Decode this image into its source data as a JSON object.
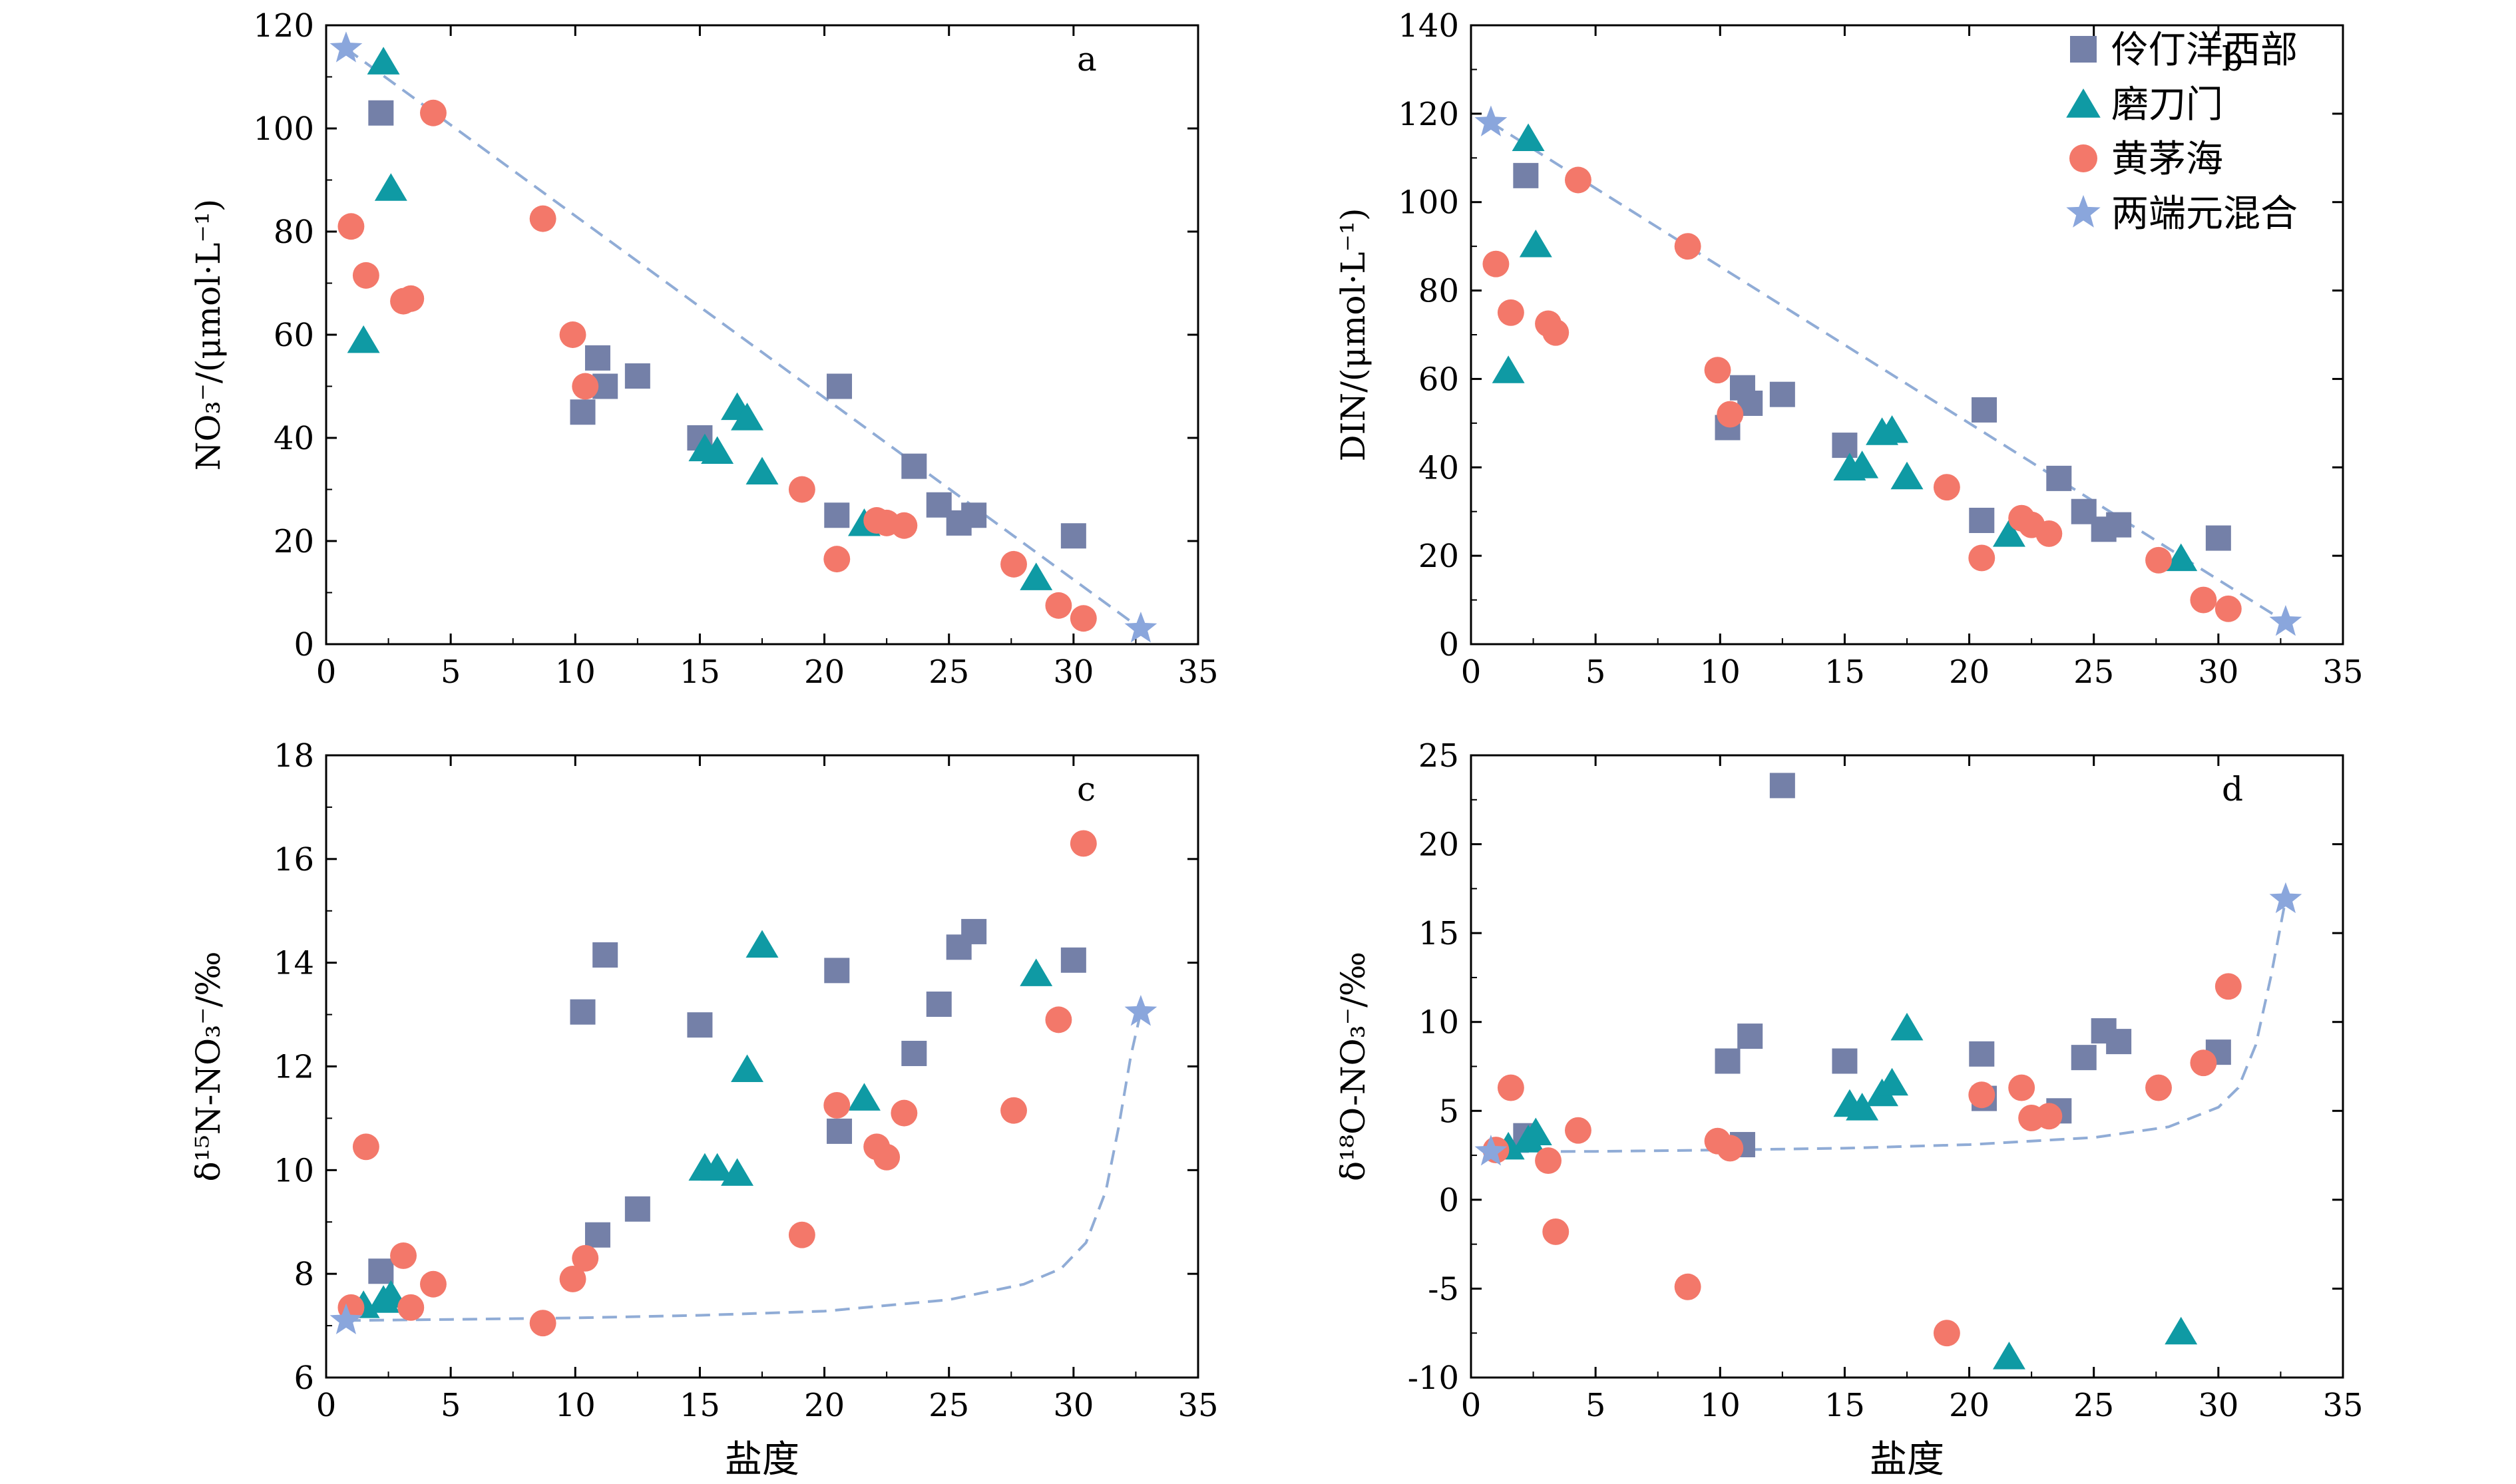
{
  "colors": {
    "west": "#7480a8",
    "modaomen": "#0f9aa4",
    "huangmaohai": "#f3786a",
    "mix": "#8aa6dc",
    "mix_line": "#90acd6",
    "axis": "#000000"
  },
  "legend": {
    "items": [
      {
        "key": "west",
        "label": "伶仃洋西部",
        "marker": "square"
      },
      {
        "key": "modaomen",
        "label": "磨刀门",
        "marker": "triangle"
      },
      {
        "key": "huangmaohai",
        "label": "黄茅海",
        "marker": "circle"
      },
      {
        "key": "mix",
        "label": "两端元混合",
        "marker": "star"
      }
    ]
  },
  "chart_data": [
    {
      "id": "a",
      "type": "scatter",
      "panel_label": "a",
      "ylabel": "NO₃⁻/(μmol·L⁻¹)",
      "xlabel": "",
      "xlim": [
        0,
        35
      ],
      "ylim": [
        0,
        120
      ],
      "xticks": [
        0,
        5,
        10,
        15,
        20,
        25,
        30,
        35
      ],
      "yticks": [
        0,
        20,
        40,
        60,
        80,
        100,
        120
      ],
      "series": [
        {
          "key": "west",
          "name": "伶仃洋西部",
          "points": [
            [
              2.2,
              103
            ],
            [
              10.3,
              45
            ],
            [
              10.9,
              55.5
            ],
            [
              11.2,
              50
            ],
            [
              12.5,
              52
            ],
            [
              15.0,
              40
            ],
            [
              20.5,
              25
            ],
            [
              20.6,
              50
            ],
            [
              23.6,
              34.5
            ],
            [
              24.6,
              27
            ],
            [
              25.4,
              23.5
            ],
            [
              26.0,
              25
            ],
            [
              30.0,
              21
            ]
          ]
        },
        {
          "key": "modaomen",
          "name": "磨刀门",
          "points": [
            [
              1.5,
              59
            ],
            [
              2.3,
              113
            ],
            [
              2.6,
              88.5
            ],
            [
              15.2,
              38
            ],
            [
              15.7,
              37.5
            ],
            [
              16.5,
              46
            ],
            [
              16.9,
              44
            ],
            [
              17.5,
              33.5
            ],
            [
              21.6,
              23.5
            ],
            [
              28.5,
              13
            ]
          ]
        },
        {
          "key": "huangmaohai",
          "name": "黄茅海",
          "points": [
            [
              1.0,
              81
            ],
            [
              1.6,
              71.5
            ],
            [
              3.1,
              66.5
            ],
            [
              3.4,
              67
            ],
            [
              4.3,
              103
            ],
            [
              8.7,
              82.5
            ],
            [
              9.9,
              60
            ],
            [
              10.4,
              50
            ],
            [
              19.1,
              30
            ],
            [
              20.5,
              16.5
            ],
            [
              22.1,
              24
            ],
            [
              22.5,
              23.5
            ],
            [
              23.2,
              23
            ],
            [
              27.6,
              15.5
            ],
            [
              29.4,
              7.5
            ],
            [
              30.4,
              5
            ]
          ]
        },
        {
          "key": "mix",
          "name": "两端元混合",
          "points": [
            [
              0.8,
              115.5
            ],
            [
              32.7,
              3
            ]
          ]
        }
      ],
      "mixing_curve": [
        [
          0.8,
          115.5
        ],
        [
          32.7,
          3
        ]
      ]
    },
    {
      "id": "b",
      "type": "scatter",
      "panel_label": "b",
      "ylabel": "DIN/(μmol·L⁻¹)",
      "xlabel": "",
      "xlim": [
        0,
        35
      ],
      "ylim": [
        0,
        140
      ],
      "xticks": [
        0,
        5,
        10,
        15,
        20,
        25,
        30,
        35
      ],
      "yticks": [
        0,
        20,
        40,
        60,
        80,
        100,
        120,
        140
      ],
      "series": [
        {
          "key": "west",
          "name": "伶仃洋西部",
          "points": [
            [
              2.2,
              106
            ],
            [
              10.3,
              49
            ],
            [
              10.9,
              58
            ],
            [
              11.2,
              54.5
            ],
            [
              12.5,
              56.5
            ],
            [
              15.0,
              45
            ],
            [
              20.5,
              28
            ],
            [
              20.6,
              53
            ],
            [
              23.6,
              37.5
            ],
            [
              24.6,
              30
            ],
            [
              25.4,
              26
            ],
            [
              26.0,
              27
            ],
            [
              30.0,
              24
            ]
          ]
        },
        {
          "key": "modaomen",
          "name": "磨刀门",
          "points": [
            [
              1.5,
              62
            ],
            [
              2.3,
              114.5
            ],
            [
              2.6,
              90.5
            ],
            [
              15.2,
              40
            ],
            [
              15.7,
              40.5
            ],
            [
              16.5,
              48
            ],
            [
              16.9,
              48.5
            ],
            [
              17.5,
              38
            ],
            [
              21.6,
              25
            ],
            [
              28.5,
              19.5
            ]
          ]
        },
        {
          "key": "huangmaohai",
          "name": "黄茅海",
          "points": [
            [
              1.0,
              86
            ],
            [
              1.6,
              75
            ],
            [
              3.1,
              72.5
            ],
            [
              3.4,
              70.5
            ],
            [
              4.3,
              105
            ],
            [
              8.7,
              90
            ],
            [
              9.9,
              62
            ],
            [
              10.4,
              52
            ],
            [
              19.1,
              35.5
            ],
            [
              20.5,
              19.5
            ],
            [
              22.1,
              28.5
            ],
            [
              22.5,
              27
            ],
            [
              23.2,
              25
            ],
            [
              27.6,
              19
            ],
            [
              29.4,
              10
            ],
            [
              30.4,
              8
            ]
          ]
        },
        {
          "key": "mix",
          "name": "两端元混合",
          "points": [
            [
              0.8,
              118
            ],
            [
              32.7,
              5
            ]
          ]
        }
      ],
      "mixing_curve": [
        [
          0.8,
          118
        ],
        [
          32.7,
          5
        ]
      ]
    },
    {
      "id": "c",
      "type": "scatter",
      "panel_label": "c",
      "ylabel": "δ¹⁵N-NO₃⁻/‰",
      "xlabel": "盐度",
      "xlim": [
        0,
        35
      ],
      "ylim": [
        6,
        18
      ],
      "xticks": [
        0,
        5,
        10,
        15,
        20,
        25,
        30,
        35
      ],
      "yticks": [
        6,
        8,
        10,
        12,
        14,
        16,
        18
      ],
      "series": [
        {
          "key": "west",
          "name": "伶仃洋西部",
          "points": [
            [
              2.2,
              8.05
            ],
            [
              10.3,
              13.05
            ],
            [
              10.9,
              8.75
            ],
            [
              11.2,
              14.15
            ],
            [
              12.5,
              9.25
            ],
            [
              15.0,
              12.8
            ],
            [
              20.5,
              13.85
            ],
            [
              20.6,
              10.75
            ],
            [
              23.6,
              12.25
            ],
            [
              24.6,
              13.2
            ],
            [
              25.4,
              14.3
            ],
            [
              26.0,
              14.6
            ],
            [
              30.0,
              14.05
            ]
          ]
        },
        {
          "key": "modaomen",
          "name": "磨刀门",
          "points": [
            [
              1.5,
              7.4
            ],
            [
              2.3,
              7.5
            ],
            [
              2.6,
              7.6
            ],
            [
              15.2,
              10.05
            ],
            [
              15.7,
              10.05
            ],
            [
              16.5,
              9.95
            ],
            [
              16.9,
              11.95
            ],
            [
              17.5,
              14.35
            ],
            [
              21.6,
              11.4
            ],
            [
              28.5,
              13.8
            ]
          ]
        },
        {
          "key": "huangmaohai",
          "name": "黄茅海",
          "points": [
            [
              1.0,
              7.35
            ],
            [
              1.6,
              10.45
            ],
            [
              3.1,
              8.35
            ],
            [
              3.4,
              7.35
            ],
            [
              4.3,
              7.8
            ],
            [
              8.7,
              7.05
            ],
            [
              9.9,
              7.9
            ],
            [
              10.4,
              8.3
            ],
            [
              19.1,
              8.75
            ],
            [
              20.5,
              11.25
            ],
            [
              22.1,
              10.45
            ],
            [
              22.5,
              10.25
            ],
            [
              23.2,
              11.1
            ],
            [
              27.6,
              11.15
            ],
            [
              29.4,
              12.9
            ],
            [
              30.4,
              16.3
            ]
          ]
        },
        {
          "key": "mix",
          "name": "两端元混合",
          "points": [
            [
              0.8,
              7.1
            ],
            [
              32.7,
              13.05
            ]
          ]
        }
      ],
      "mixing_curve": [
        [
          0.8,
          7.1
        ],
        [
          5,
          7.12
        ],
        [
          10,
          7.15
        ],
        [
          15,
          7.2
        ],
        [
          20,
          7.28
        ],
        [
          25,
          7.5
        ],
        [
          28,
          7.8
        ],
        [
          29.5,
          8.1
        ],
        [
          30.5,
          8.6
        ],
        [
          31.3,
          9.6
        ],
        [
          31.8,
          10.8
        ],
        [
          32.3,
          12.2
        ],
        [
          32.7,
          13.05
        ]
      ]
    },
    {
      "id": "d",
      "type": "scatter",
      "panel_label": "d",
      "ylabel": "δ¹⁸O-NO₃⁻/‰",
      "xlabel": "盐度",
      "xlim": [
        0,
        35
      ],
      "ylim": [
        -10,
        25
      ],
      "xticks": [
        0,
        5,
        10,
        15,
        20,
        25,
        30,
        35
      ],
      "yticks": [
        -10,
        -5,
        0,
        5,
        10,
        15,
        20,
        25
      ],
      "series": [
        {
          "key": "west",
          "name": "伶仃洋西部",
          "points": [
            [
              2.2,
              3.6
            ],
            [
              10.3,
              7.8
            ],
            [
              10.9,
              3.1
            ],
            [
              11.2,
              9.2
            ],
            [
              12.5,
              23.3
            ],
            [
              15.0,
              7.8
            ],
            [
              20.5,
              8.2
            ],
            [
              20.6,
              5.7
            ],
            [
              23.6,
              5.0
            ],
            [
              24.6,
              8.0
            ],
            [
              25.4,
              9.5
            ],
            [
              26.0,
              8.9
            ],
            [
              30.0,
              8.3
            ]
          ]
        },
        {
          "key": "modaomen",
          "name": "磨刀门",
          "points": [
            [
              1.5,
              3.0
            ],
            [
              2.3,
              3.4
            ],
            [
              2.6,
              3.8
            ],
            [
              15.2,
              5.4
            ],
            [
              15.7,
              5.2
            ],
            [
              16.5,
              6.0
            ],
            [
              16.9,
              6.6
            ],
            [
              17.5,
              9.7
            ],
            [
              21.6,
              -8.8
            ],
            [
              28.5,
              -7.4
            ]
          ]
        },
        {
          "key": "huangmaohai",
          "name": "黄茅海",
          "points": [
            [
              1.0,
              2.8
            ],
            [
              1.6,
              6.3
            ],
            [
              3.1,
              2.2
            ],
            [
              3.4,
              -1.8
            ],
            [
              4.3,
              3.9
            ],
            [
              8.7,
              -4.9
            ],
            [
              9.9,
              3.3
            ],
            [
              10.4,
              2.9
            ],
            [
              19.1,
              -7.5
            ],
            [
              20.5,
              5.9
            ],
            [
              22.1,
              6.3
            ],
            [
              22.5,
              4.6
            ],
            [
              23.2,
              4.7
            ],
            [
              27.6,
              6.3
            ],
            [
              29.4,
              7.7
            ],
            [
              30.4,
              12.0
            ]
          ]
        },
        {
          "key": "mix",
          "name": "两端元混合",
          "points": [
            [
              0.8,
              2.7
            ],
            [
              32.7,
              16.9
            ]
          ]
        }
      ],
      "mixing_curve": [
        [
          0.8,
          2.7
        ],
        [
          5,
          2.72
        ],
        [
          10,
          2.8
        ],
        [
          15,
          2.9
        ],
        [
          20,
          3.1
        ],
        [
          25,
          3.5
        ],
        [
          28,
          4.1
        ],
        [
          30,
          5.2
        ],
        [
          30.8,
          6.3
        ],
        [
          31.5,
          8.7
        ],
        [
          32.1,
          12.5
        ],
        [
          32.7,
          16.9
        ]
      ]
    }
  ]
}
